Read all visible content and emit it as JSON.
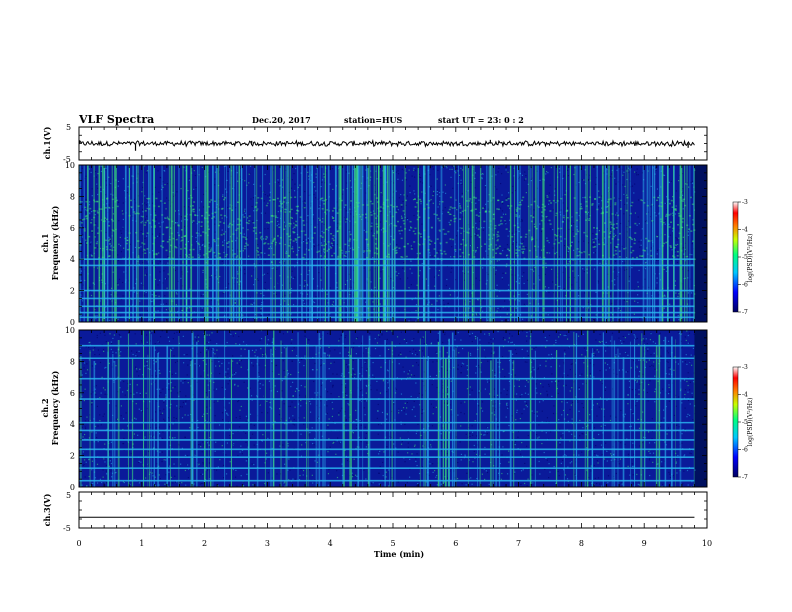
{
  "header": {
    "title": "VLF Spectra",
    "date": "Dec.20, 2017",
    "station": "station=HUS",
    "start": "start  UT  =   23: 0  : 2"
  },
  "colors": {
    "spec_bg": "#0a1a9a",
    "spec_dark": "#00006a",
    "spec_green": "#3ef07a",
    "spec_cyan": "#2ab4f0",
    "trace": "#000000"
  },
  "chart_data": [
    {
      "id": "ch1-waveform",
      "type": "line",
      "ylabel": "ch.1(V)",
      "ylim": [
        -5,
        5
      ],
      "yticks": [
        "5",
        "-5"
      ],
      "baseline": 0,
      "spikes": [
        {
          "x": 0.9,
          "y": -2.2
        },
        {
          "x": 2.75,
          "y": 0.8
        },
        {
          "x": 6.55,
          "y": 1.1
        },
        {
          "x": 9.7,
          "y": -1.3
        }
      ]
    },
    {
      "id": "ch1-spectrogram",
      "type": "heatmap",
      "ylabel": "ch.1",
      "ylabel2": "Frequency (kHz)",
      "ylim": [
        0,
        10
      ],
      "yticks": [
        "0",
        "2",
        "4",
        "6",
        "8",
        "10"
      ],
      "xlim": [
        0,
        9.8
      ],
      "bright_region_khz": [
        4.0,
        8.0
      ],
      "tones_khz": [
        0.3,
        0.6,
        1.0,
        1.5,
        2.0,
        3.6,
        4.0
      ],
      "colorbar": {
        "label": "log(PSD)(V²/Hz)",
        "range": [
          -7,
          -3
        ],
        "ticks": [
          "-3",
          "-4",
          "-5",
          "-6",
          "-7"
        ]
      }
    },
    {
      "id": "ch2-spectrogram",
      "type": "heatmap",
      "ylabel": "ch.2",
      "ylabel2": "Frequency (kHz)",
      "ylim": [
        0,
        10
      ],
      "yticks": [
        "0",
        "2",
        "4",
        "6",
        "8",
        "10"
      ],
      "xlim": [
        0,
        9.8
      ],
      "tones_khz": [
        0.4,
        1.2,
        1.9,
        2.4,
        3.0,
        3.6,
        4.1,
        5.6,
        6.9,
        8.2,
        9.0
      ],
      "colorbar": {
        "label": "log(PSD)(V²/Hz)",
        "range": [
          -7,
          -3
        ],
        "ticks": [
          "-3",
          "-4",
          "-5",
          "-6",
          "-7"
        ]
      }
    },
    {
      "id": "ch3-waveform",
      "type": "line",
      "ylabel": "ch.3(V)",
      "ylim": [
        -5,
        5
      ],
      "yticks": [
        "5",
        "-5"
      ],
      "baseline": -2,
      "spikes": []
    }
  ],
  "xaxis": {
    "label": "Time (min)",
    "xlim": [
      0,
      10
    ],
    "ticks": [
      "0",
      "1",
      "2",
      "3",
      "4",
      "5",
      "6",
      "7",
      "8",
      "9",
      "10"
    ]
  }
}
